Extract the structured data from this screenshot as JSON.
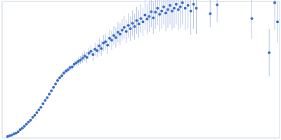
{
  "chart_data": {
    "type": "scatter",
    "color": "#3d6fc4",
    "marker": "circle",
    "grid": true,
    "tick_labels": false,
    "xlim": [
      0,
      400
    ],
    "ylim": [
      0,
      200
    ],
    "xticks": [
      115
    ],
    "yticks": [
      100
    ],
    "x": [
      8,
      11,
      14,
      17,
      20,
      23,
      26,
      29,
      32,
      35,
      38,
      41,
      44,
      47,
      50,
      53,
      56,
      59,
      62,
      65,
      68,
      71,
      74,
      77,
      80,
      83,
      86,
      89,
      92,
      95,
      98,
      101,
      104,
      107,
      110,
      113,
      116,
      119,
      122,
      125,
      128,
      131,
      134,
      137,
      140,
      143,
      146,
      149,
      152,
      155,
      158,
      161,
      164,
      167,
      170,
      173,
      176,
      179,
      182,
      185,
      188,
      191,
      194,
      197,
      200,
      203,
      206,
      209,
      212,
      215,
      218,
      221,
      224,
      227,
      230,
      233,
      236,
      239,
      242,
      245,
      248,
      251,
      254,
      257,
      260,
      264,
      268,
      272,
      276,
      280,
      300,
      310,
      360,
      385,
      393,
      397
    ],
    "values": [
      2,
      3,
      4,
      6,
      7,
      9,
      12,
      14,
      17,
      20,
      23,
      26,
      30,
      33,
      37,
      41,
      45,
      50,
      55,
      59,
      64,
      69,
      74,
      79,
      84,
      88,
      91,
      95,
      98,
      100,
      103,
      104,
      108,
      110,
      112,
      114,
      117,
      120,
      118,
      124,
      127,
      122,
      130,
      128,
      135,
      131,
      139,
      141,
      136,
      146,
      143,
      150,
      147,
      155,
      152,
      158,
      162,
      156,
      165,
      160,
      168,
      163,
      172,
      167,
      175,
      170,
      180,
      174,
      178,
      185,
      176,
      184,
      190,
      181,
      186,
      192,
      183,
      188,
      194,
      186,
      190,
      196,
      188,
      192,
      198,
      190,
      194,
      186,
      196,
      190,
      182,
      195,
      175,
      125,
      198,
      170
    ],
    "errors": [
      0.5,
      0.5,
      0.5,
      0.6,
      0.6,
      0.7,
      0.8,
      0.8,
      1,
      1,
      1,
      1.2,
      1.2,
      1.3,
      1.4,
      1.5,
      1.6,
      1.8,
      2,
      2,
      2.2,
      2.4,
      2.5,
      2.7,
      3,
      3,
      3.2,
      3.5,
      3.6,
      4,
      4,
      4.5,
      5,
      5,
      6,
      6,
      7,
      7,
      8,
      8,
      9,
      9,
      10,
      10,
      11,
      11,
      12,
      12,
      13,
      13,
      14,
      14,
      15,
      15,
      16,
      16,
      17,
      17,
      18,
      18,
      19,
      19,
      20,
      20,
      21,
      21,
      22,
      22,
      23,
      23,
      24,
      24,
      25,
      25,
      26,
      26,
      27,
      27,
      28,
      28,
      29,
      30,
      30,
      31,
      32,
      32,
      34,
      35,
      36,
      38,
      20,
      25,
      30,
      35,
      40,
      30
    ]
  }
}
